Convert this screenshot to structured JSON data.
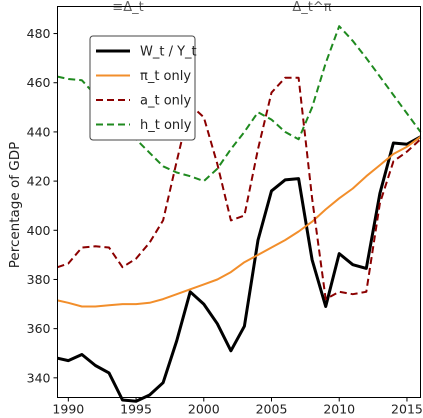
{
  "chart_data": {
    "type": "line",
    "top_annotations": [
      "≡Δ_t",
      "Δ_t^π"
    ],
    "ylabel": "Percentage of GDP",
    "xlabel": "",
    "xlim": [
      1989.2,
      2016
    ],
    "ylim": [
      332,
      491
    ],
    "xticks": [
      1990,
      1995,
      2000,
      2005,
      2010,
      2015
    ],
    "yticks": [
      340,
      360,
      380,
      400,
      420,
      440,
      460,
      480
    ],
    "grid": false,
    "legend_position": "top-left",
    "series": [
      {
        "name": "W_t / Y_t",
        "color": "#000000",
        "dash": "solid",
        "width": 3,
        "points": [
          [
            1989.2,
            348
          ],
          [
            1990,
            347
          ],
          [
            1991,
            349.5
          ],
          [
            1992,
            345
          ],
          [
            1993,
            342
          ],
          [
            1994,
            331
          ],
          [
            1995,
            330.5
          ],
          [
            1996,
            333
          ],
          [
            1997,
            338
          ],
          [
            1998,
            355
          ],
          [
            1999,
            375
          ],
          [
            2000,
            370
          ],
          [
            2001,
            362
          ],
          [
            2002,
            351
          ],
          [
            2003,
            361
          ],
          [
            2004,
            396
          ],
          [
            2005,
            416
          ],
          [
            2006,
            420.5
          ],
          [
            2007,
            421
          ],
          [
            2008,
            388
          ],
          [
            2009,
            369
          ],
          [
            2010,
            390.5
          ],
          [
            2011,
            386
          ],
          [
            2012,
            384.5
          ],
          [
            2013,
            415
          ],
          [
            2014,
            435.5
          ],
          [
            2015,
            435
          ],
          [
            2016,
            438
          ]
        ]
      },
      {
        "name": "π_t only",
        "color": "#f28e2b",
        "dash": "solid",
        "width": 2,
        "points": [
          [
            1989.2,
            371.5
          ],
          [
            1990,
            370.5
          ],
          [
            1991,
            369
          ],
          [
            1992,
            369
          ],
          [
            1993,
            369.5
          ],
          [
            1994,
            370
          ],
          [
            1995,
            370
          ],
          [
            1996,
            370.5
          ],
          [
            1997,
            372
          ],
          [
            1998,
            374
          ],
          [
            1999,
            376
          ],
          [
            2000,
            378
          ],
          [
            2001,
            380
          ],
          [
            2002,
            383
          ],
          [
            2003,
            387
          ],
          [
            2004,
            390
          ],
          [
            2005,
            393
          ],
          [
            2006,
            396
          ],
          [
            2007,
            399.5
          ],
          [
            2008,
            403.5
          ],
          [
            2009,
            408.5
          ],
          [
            2010,
            413
          ],
          [
            2011,
            417
          ],
          [
            2012,
            422
          ],
          [
            2013,
            426.5
          ],
          [
            2014,
            431
          ],
          [
            2015,
            434
          ],
          [
            2016,
            438
          ]
        ]
      },
      {
        "name": "a_t only",
        "color": "#8b0000",
        "dash": "dashed",
        "width": 2,
        "points": [
          [
            1989.2,
            385
          ],
          [
            1990,
            386.5
          ],
          [
            1991,
            393
          ],
          [
            1992,
            393.5
          ],
          [
            1993,
            393
          ],
          [
            1994,
            385
          ],
          [
            1995,
            388.5
          ],
          [
            1996,
            395
          ],
          [
            1997,
            404
          ],
          [
            1998,
            428
          ],
          [
            1999,
            451
          ],
          [
            2000,
            446
          ],
          [
            2001,
            427
          ],
          [
            2002,
            404
          ],
          [
            2003,
            406
          ],
          [
            2004,
            433
          ],
          [
            2005,
            456
          ],
          [
            2006,
            462
          ],
          [
            2007,
            462
          ],
          [
            2008,
            413
          ],
          [
            2009,
            372
          ],
          [
            2010,
            375
          ],
          [
            2011,
            374
          ],
          [
            2012,
            375
          ],
          [
            2013,
            411
          ],
          [
            2014,
            428
          ],
          [
            2015,
            432
          ],
          [
            2016,
            437
          ]
        ]
      },
      {
        "name": "h_t only",
        "color": "#1f8a1f",
        "dash": "dashed",
        "width": 2,
        "points": [
          [
            1989.2,
            462.5
          ],
          [
            1990,
            461.5
          ],
          [
            1991,
            461
          ],
          [
            1992,
            455
          ],
          [
            1993,
            449
          ],
          [
            1994,
            443
          ],
          [
            1995,
            437
          ],
          [
            1996,
            431.5
          ],
          [
            1997,
            426
          ],
          [
            1998,
            423.5
          ],
          [
            1999,
            422
          ],
          [
            2000,
            420
          ],
          [
            2001,
            425
          ],
          [
            2002,
            433
          ],
          [
            2003,
            440
          ],
          [
            2004,
            448
          ],
          [
            2005,
            445
          ],
          [
            2006,
            440
          ],
          [
            2007,
            437
          ],
          [
            2008,
            450
          ],
          [
            2009,
            468
          ],
          [
            2010,
            483
          ],
          [
            2011,
            477
          ],
          [
            2012,
            470
          ],
          [
            2013,
            462.5
          ],
          [
            2014,
            455
          ],
          [
            2015,
            447.5
          ],
          [
            2016,
            440
          ]
        ]
      }
    ]
  }
}
